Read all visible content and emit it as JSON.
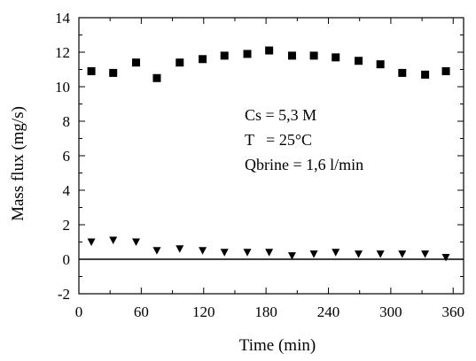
{
  "chart_data": {
    "type": "scatter",
    "title": "",
    "xlabel": "Time (min)",
    "ylabel": "Mass flux (mg/s)",
    "xlim": [
      0,
      370
    ],
    "ylim": [
      -2,
      14
    ],
    "xticks": [
      0,
      60,
      120,
      180,
      240,
      300,
      360
    ],
    "yticks": [
      -2,
      0,
      2,
      4,
      6,
      8,
      10,
      12,
      14
    ],
    "reference_line_y": 0,
    "grid": false,
    "legend": "none",
    "annotations": [
      "Cs = 5,3 M",
      "T   = 25°C",
      "Qbrine = 1,6 l/min"
    ],
    "series": [
      {
        "marker": "square",
        "color": "#000000",
        "x": [
          12,
          33,
          55,
          75,
          97,
          119,
          140,
          162,
          183,
          205,
          226,
          247,
          269,
          290,
          311,
          333,
          353
        ],
        "y": [
          10.9,
          10.8,
          11.4,
          10.5,
          11.4,
          11.6,
          11.8,
          11.9,
          12.1,
          11.8,
          11.8,
          11.7,
          11.5,
          11.3,
          10.8,
          10.7,
          10.9
        ]
      },
      {
        "marker": "triangle-down",
        "color": "#000000",
        "x": [
          12,
          33,
          55,
          75,
          97,
          119,
          140,
          162,
          183,
          205,
          226,
          247,
          269,
          290,
          311,
          333,
          353
        ],
        "y": [
          1.0,
          1.1,
          1.0,
          0.5,
          0.6,
          0.5,
          0.4,
          0.4,
          0.4,
          0.2,
          0.3,
          0.4,
          0.3,
          0.3,
          0.3,
          0.3,
          0.1
        ]
      }
    ]
  }
}
